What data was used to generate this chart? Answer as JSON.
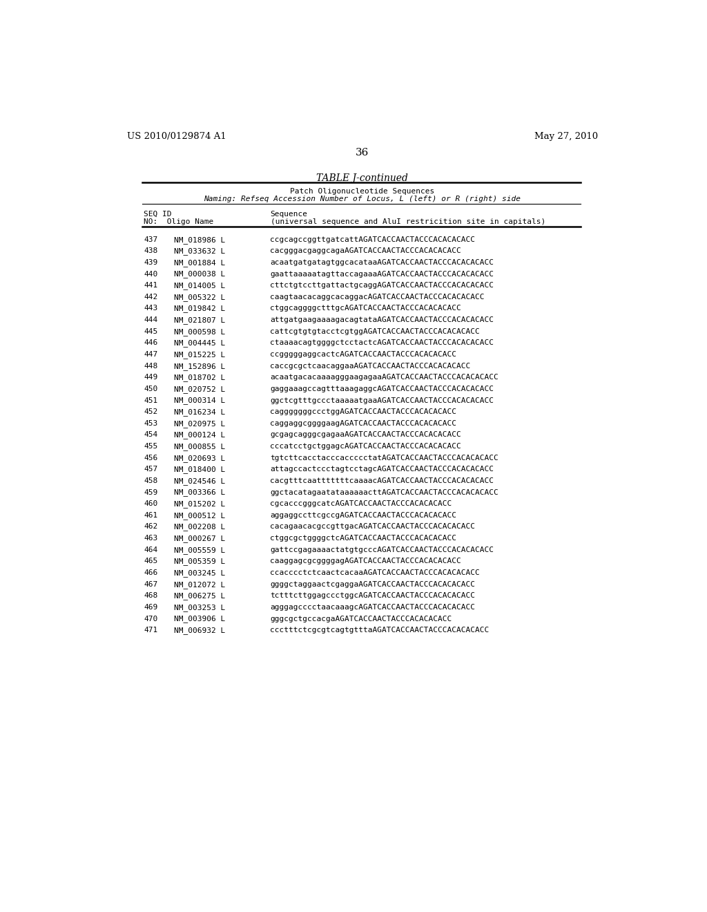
{
  "header_left": "US 2010/0129874 A1",
  "header_right": "May 27, 2010",
  "page_number": "36",
  "table_title": "TABLE J-continued",
  "subtitle1": "Patch Oligonucleotide Sequences",
  "subtitle2": "Naming: Refseq Accession Number of Locus, L (left) or R (right) side",
  "col1_header1": "SEQ ID",
  "col1_header2": "NO:  Oligo Name",
  "col3_header1": "Sequence",
  "col3_header2": "(universal sequence and AluI restricition site in capitals)",
  "rows": [
    [
      "437",
      "NM_018986 L",
      "ccgcagccggttgatcattAGATCACCAACTACCCACACACАCC"
    ],
    [
      "438",
      "NM_033632 L",
      "cacgggacgaggcagaAGATCACCAACTACCCACACACАCC"
    ],
    [
      "439",
      "NM_001884 L",
      "acaatgatgatagtggcacataaAGATCACCAACTACCCACACACАCC"
    ],
    [
      "440",
      "NM_000038 L",
      "gaattaaaaatagttaccagaaaAGATCACCAACTACCCACACACАCC"
    ],
    [
      "441",
      "NM_014005 L",
      "cttctgtccttgattactgcaggAGATCACCAACTACCCACACACАCC"
    ],
    [
      "442",
      "NM_005322 L",
      "caagtaacacaggcacaggacAGATCACCAACTACCCACACACАCC"
    ],
    [
      "443",
      "NM_019842 L",
      "ctggcaggggctttgcAGATCACCAACTACCCACACACАCC"
    ],
    [
      "444",
      "NM_021807 L",
      "attgatgaagaaaagacagtataAGATCACCAACTACCCACACACАCC"
    ],
    [
      "445",
      "NM_000598 L",
      "cattcgtgtgtacctcgtggAGATCACCAACTACCCACACACАCC"
    ],
    [
      "446",
      "NM_004445 L",
      "ctaaaacagtggggctcctactcAGATCACCAACTACCCACACACАCC"
    ],
    [
      "447",
      "NM_015225 L",
      "ccgggggaggcactcAGATCACCAACTACCCACACACАCC"
    ],
    [
      "448",
      "NM_152896 L",
      "caccgcgctcaacaggaaAGATCACCAACTACCCACACACАCC"
    ],
    [
      "449",
      "NM_018702 L",
      "acaatgacacaaaagggaagagaaAGATCACCAACTACCCACACACАCC"
    ],
    [
      "450",
      "NM_020752 L",
      "gaggaaagccagtttaaagaggcAGATCACCAACTACCCACACACАCC"
    ],
    [
      "451",
      "NM_000314 L",
      "ggctcgtttgccctaaaaatgaaAGATCACCAACTACCCACACACАCC"
    ],
    [
      "452",
      "NM_016234 L",
      "cagggggggccctggAGATCACCAACTACCCACACACАCC"
    ],
    [
      "453",
      "NM_020975 L",
      "caggaggcggggaagAGATCACCAACTACCCACACACАCC"
    ],
    [
      "454",
      "NM_000124 L",
      "gcgagcagggcgagaaAGATCACCAACTACCCACACACАCC"
    ],
    [
      "455",
      "NM_000855 L",
      "cccatcctgctggagcAGATCACCAACTACCCACACACАCC"
    ],
    [
      "456",
      "NM_020693 L",
      "tgtcttcacctacccaccccctatAGATCACCAACTACCCACACACАCC"
    ],
    [
      "457",
      "NM_018400 L",
      "attagccactccctagtcctagcAGATCACCAACTACCCACACACАCC"
    ],
    [
      "458",
      "NM_024546 L",
      "cacgtttcaatttttttcaaaacAGATCACCAACTACCCACACACАCC"
    ],
    [
      "459",
      "NM_003366 L",
      "ggctacatagaatataaaaaacttAGATCACCAACTACCCACACACАCC"
    ],
    [
      "460",
      "NM_015202 L",
      "cgcacccgggcatcAGATCACCAACTACCCACACACАCC"
    ],
    [
      "461",
      "NM_000512 L",
      "aggaggccttcgccgAGATCACCAACTACCCACACACАCC"
    ],
    [
      "462",
      "NM_002208 L",
      "cacagaacacgccgttgacAGATCACCAACTACCCACACACАCC"
    ],
    [
      "463",
      "NM_000267 L",
      "ctggcgctggggctcAGATCACCAACTACCCACACACАCC"
    ],
    [
      "464",
      "NM_005559 L",
      "gattccgagaaaactatgtgcccAGATCACCAACTACCCACACACАCC"
    ],
    [
      "465",
      "NM_005359 L",
      "caaggagcgcggggagAGATCACCAACTACCCACACACАCC"
    ],
    [
      "466",
      "NM_003245 L",
      "ccacccctctcaactcacaaAGATCACCAACTACCCACACACАCC"
    ],
    [
      "467",
      "NM_012072 L",
      "ggggctaggaactcgaggaAGATCACCAACTACCCACACACАCC"
    ],
    [
      "468",
      "NM_006275 L",
      "tctttcttggagccctggcAGATCACCAACTACCCACACACАCC"
    ],
    [
      "469",
      "NM_003253 L",
      "agggagcccctaacaaagcAGATCACCAACTACCCACACACАCC"
    ],
    [
      "470",
      "NM_003906 L",
      "gggcgctgccacgaAGATCACCAACTACCCACACACАCC"
    ],
    [
      "471",
      "NM_006932 L",
      "ccctttctcgcgtcagtgtttaAGATCACCAACTACCCACACACАCC"
    ]
  ],
  "background_color": "#ffffff",
  "text_color": "#000000",
  "line_color": "#000000",
  "title_fontsize": 10,
  "body_fontsize": 8.0,
  "header_fontsize": 9.5
}
